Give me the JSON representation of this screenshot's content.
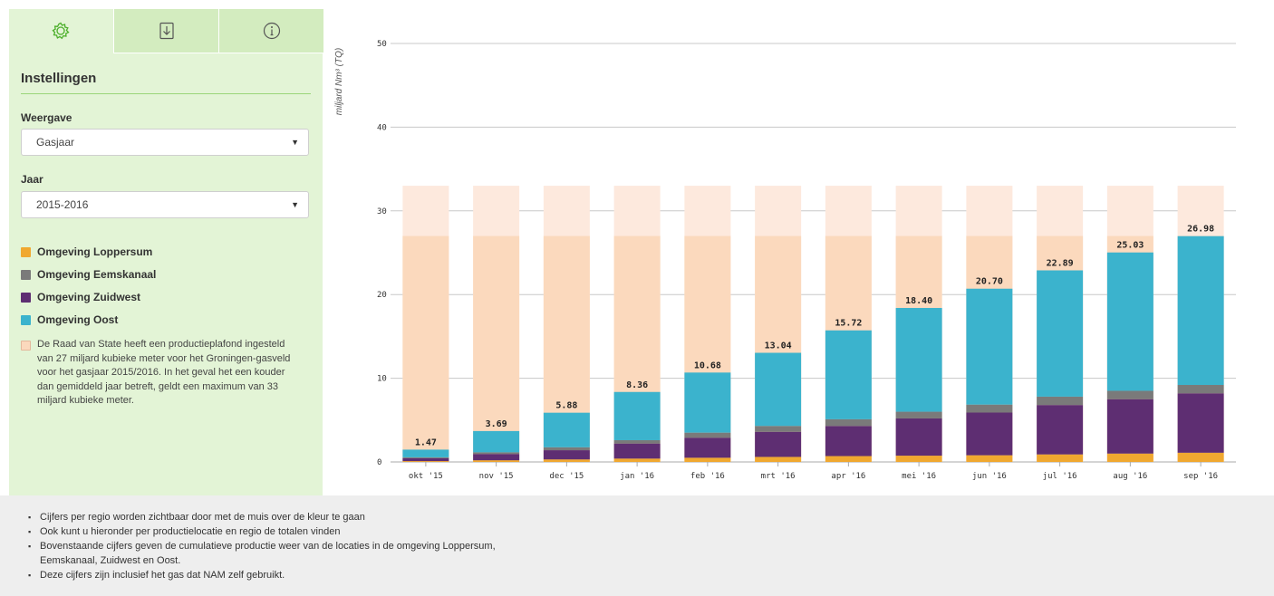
{
  "sidebar": {
    "tabs": [
      {
        "icon": "gear-icon"
      },
      {
        "icon": "download-icon"
      },
      {
        "icon": "info-icon"
      }
    ],
    "title": "Instellingen",
    "weergave": {
      "label": "Weergave",
      "value": "Gasjaar"
    },
    "jaar": {
      "label": "Jaar",
      "value": "2015-2016"
    },
    "legend": [
      {
        "label": "Omgeving Loppersum",
        "color": "#f0a830"
      },
      {
        "label": "Omgeving Eemskanaal",
        "color": "#7a7a7a"
      },
      {
        "label": "Omgeving Zuidwest",
        "color": "#5e2e72"
      },
      {
        "label": "Omgeving Oost",
        "color": "#3bb3cd"
      }
    ],
    "note": {
      "color": "#fbd9bd",
      "text": "De Raad van State heeft een productieplafond ingesteld van 27 miljard kubieke meter voor het Groningen-gasveld voor het gasjaar 2015/2016. In het geval het een kouder dan gemiddeld jaar betreft, geldt een maximum van 33 miljard kubieke meter."
    }
  },
  "chart_data": {
    "type": "bar",
    "stacked": true,
    "categories": [
      "okt '15",
      "nov '15",
      "dec '15",
      "jan '16",
      "feb '16",
      "mrt '16",
      "apr '16",
      "mei '16",
      "jun '16",
      "jul '16",
      "aug '16",
      "sep '16"
    ],
    "series": [
      {
        "name": "Omgeving Loppersum",
        "color": "#f0a830",
        "values": [
          0.1,
          0.2,
          0.3,
          0.4,
          0.5,
          0.6,
          0.7,
          0.75,
          0.8,
          0.9,
          1.0,
          1.1
        ]
      },
      {
        "name": "Omgeving Zuidwest",
        "color": "#5e2e72",
        "values": [
          0.35,
          0.75,
          1.1,
          1.8,
          2.4,
          3.0,
          3.6,
          4.45,
          5.1,
          5.9,
          6.5,
          7.1
        ]
      },
      {
        "name": "Omgeving Eemskanaal",
        "color": "#7a7a7a",
        "values": [
          0.1,
          0.2,
          0.35,
          0.4,
          0.6,
          0.7,
          0.8,
          0.8,
          0.95,
          1.0,
          1.0,
          1.0
        ]
      },
      {
        "name": "Omgeving Oost",
        "color": "#3bb3cd",
        "values": [
          0.92,
          2.54,
          4.13,
          5.76,
          7.18,
          8.74,
          10.62,
          12.4,
          13.85,
          15.09,
          16.53,
          17.78
        ]
      }
    ],
    "totals": [
      "1.47",
      "3.69",
      "5.88",
      "8.36",
      "10.68",
      "13.04",
      "15.72",
      "18.40",
      "20.70",
      "22.89",
      "25.03",
      "26.98"
    ],
    "plafond": {
      "value": 27,
      "color": "#fbd9bd"
    },
    "maximum": {
      "value": 33,
      "color": "#fde9dd"
    },
    "ylabel": "miljard Nm³ (TQ)",
    "ylim": [
      0,
      50
    ],
    "yticks": [
      0,
      10,
      20,
      30,
      40,
      50
    ],
    "grid": true
  },
  "notes": [
    "Cijfers per regio worden zichtbaar door met de muis over de kleur te gaan",
    "Ook kunt u hieronder per productielocatie en regio de totalen vinden",
    "Bovenstaande cijfers geven de cumulatieve productie weer van de locaties in de omgeving Loppersum,",
    "Eemskanaal, Zuidwest en Oost.",
    "Deze cijfers zijn inclusief het gas dat NAM zelf gebruikt."
  ]
}
